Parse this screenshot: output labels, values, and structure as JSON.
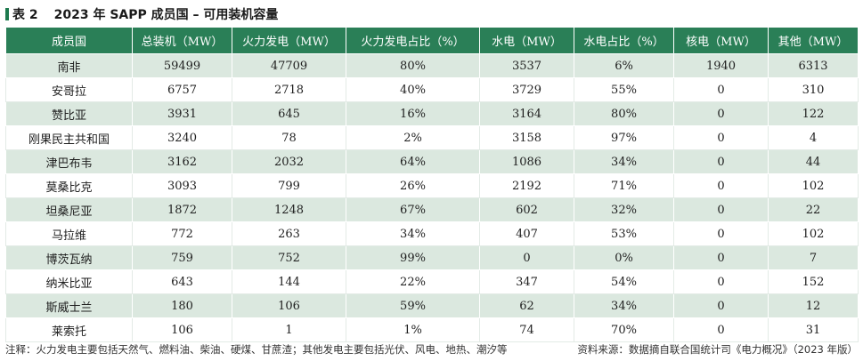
{
  "title": {
    "label": "表 2",
    "text": "2023 年 SAPP 成员国 – 可用装机容量"
  },
  "table": {
    "headers": [
      "成员国",
      "总装机（MW）",
      "火力发电（MW）",
      "火力发电占比（%）",
      "水电（MW）",
      "水电占比（%）",
      "核电（MW）",
      "其他（MW）"
    ],
    "rows": [
      [
        "南非",
        "59499",
        "47709",
        "80%",
        "3537",
        "6%",
        "1940",
        "6313"
      ],
      [
        "安哥拉",
        "6757",
        "2718",
        "40%",
        "3729",
        "55%",
        "0",
        "310"
      ],
      [
        "赞比亚",
        "3931",
        "645",
        "16%",
        "3164",
        "80%",
        "0",
        "122"
      ],
      [
        "刚果民主共和国",
        "3240",
        "78",
        "2%",
        "3158",
        "97%",
        "0",
        "4"
      ],
      [
        "津巴布韦",
        "3162",
        "2032",
        "64%",
        "1086",
        "34%",
        "0",
        "44"
      ],
      [
        "莫桑比克",
        "3093",
        "799",
        "26%",
        "2192",
        "71%",
        "0",
        "102"
      ],
      [
        "坦桑尼亚",
        "1872",
        "1248",
        "67%",
        "602",
        "32%",
        "0",
        "22"
      ],
      [
        "马拉维",
        "772",
        "263",
        "34%",
        "407",
        "53%",
        "0",
        "102"
      ],
      [
        "博茨瓦纳",
        "759",
        "752",
        "99%",
        "0",
        "0%",
        "0",
        "7"
      ],
      [
        "纳米比亚",
        "643",
        "144",
        "22%",
        "347",
        "54%",
        "0",
        "152"
      ],
      [
        "斯威士兰",
        "180",
        "106",
        "59%",
        "62",
        "34%",
        "0",
        "12"
      ],
      [
        "莱索托",
        "106",
        "1",
        "1%",
        "74",
        "70%",
        "0",
        "31"
      ]
    ]
  },
  "footer": {
    "note": "注释：火力发电主要包括天然气、燃料油、柴油、硬煤、甘蔗渣；其他发电主要包括光伏、风电、地热、潮汐等",
    "source": "资料来源：数据摘自联合国统计司《电力概况》（2023 年版）"
  }
}
